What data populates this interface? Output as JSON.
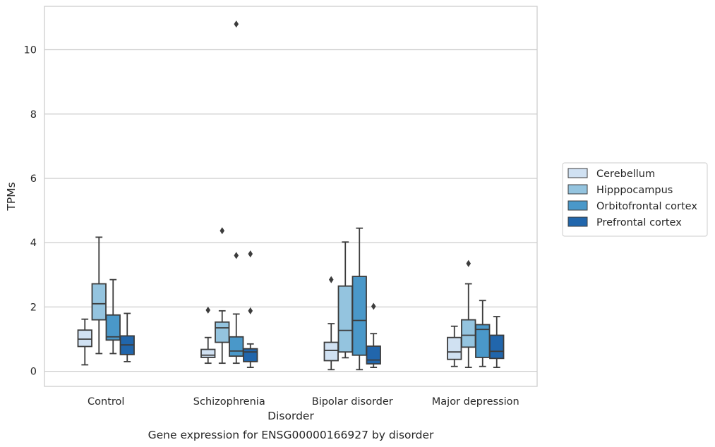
{
  "caption": "Gene expression for ENSG00000166927 by disorder",
  "chart_data": {
    "type": "box",
    "xlabel": "Disorder",
    "ylabel": "TPMs",
    "ylim": [
      -0.47,
      11.35
    ],
    "yticks": [
      0,
      2,
      4,
      6,
      8,
      10
    ],
    "grid": "horizontal",
    "legend_position": "right",
    "categories": [
      "Control",
      "Schizophrenia",
      "Bipolar disorder",
      "Major depression"
    ],
    "series": [
      {
        "name": "Cerebellum",
        "color": "#d0e1f2",
        "boxes": [
          {
            "whislo": 0.2,
            "q1": 0.77,
            "med": 1.0,
            "q3": 1.28,
            "whishi": 1.62,
            "fliers": []
          },
          {
            "whislo": 0.25,
            "q1": 0.43,
            "med": 0.5,
            "q3": 0.68,
            "whishi": 1.05,
            "fliers": [
              1.9
            ]
          },
          {
            "whislo": 0.05,
            "q1": 0.33,
            "med": 0.65,
            "q3": 0.9,
            "whishi": 1.48,
            "fliers": [
              2.85
            ]
          },
          {
            "whislo": 0.15,
            "q1": 0.37,
            "med": 0.6,
            "q3": 1.05,
            "whishi": 1.4,
            "fliers": []
          }
        ]
      },
      {
        "name": "Hipppocampus",
        "color": "#94c4df",
        "boxes": [
          {
            "whislo": 0.55,
            "q1": 1.6,
            "med": 2.1,
            "q3": 2.72,
            "whishi": 4.17,
            "fliers": []
          },
          {
            "whislo": 0.25,
            "q1": 0.9,
            "med": 1.35,
            "q3": 1.53,
            "whishi": 1.88,
            "fliers": [
              4.37
            ]
          },
          {
            "whislo": 0.42,
            "q1": 0.6,
            "med": 1.27,
            "q3": 2.65,
            "whishi": 4.02,
            "fliers": []
          },
          {
            "whislo": 0.12,
            "q1": 0.75,
            "med": 1.12,
            "q3": 1.6,
            "whishi": 2.72,
            "fliers": [
              3.35
            ]
          }
        ]
      },
      {
        "name": "Orbitofrontal cortex",
        "color": "#4a98c9",
        "boxes": [
          {
            "whislo": 0.55,
            "q1": 0.97,
            "med": 1.07,
            "q3": 1.75,
            "whishi": 2.85,
            "fliers": []
          },
          {
            "whislo": 0.25,
            "q1": 0.47,
            "med": 0.63,
            "q3": 1.07,
            "whishi": 1.78,
            "fliers": [
              3.6,
              10.8
            ]
          },
          {
            "whislo": 0.05,
            "q1": 0.5,
            "med": 1.58,
            "q3": 2.95,
            "whishi": 4.45,
            "fliers": []
          },
          {
            "whislo": 0.15,
            "q1": 0.43,
            "med": 1.3,
            "q3": 1.45,
            "whishi": 2.2,
            "fliers": []
          }
        ]
      },
      {
        "name": "Prefrontal cortex",
        "color": "#2166ac",
        "boxes": [
          {
            "whislo": 0.3,
            "q1": 0.52,
            "med": 0.82,
            "q3": 1.1,
            "whishi": 1.8,
            "fliers": []
          },
          {
            "whislo": 0.12,
            "q1": 0.3,
            "med": 0.6,
            "q3": 0.7,
            "whishi": 0.85,
            "fliers": [
              1.88,
              3.65
            ]
          },
          {
            "whislo": 0.12,
            "q1": 0.23,
            "med": 0.35,
            "q3": 0.78,
            "whishi": 1.17,
            "fliers": [
              2.02
            ]
          },
          {
            "whislo": 0.12,
            "q1": 0.4,
            "med": 0.62,
            "q3": 1.12,
            "whishi": 1.7,
            "fliers": []
          }
        ]
      }
    ]
  }
}
